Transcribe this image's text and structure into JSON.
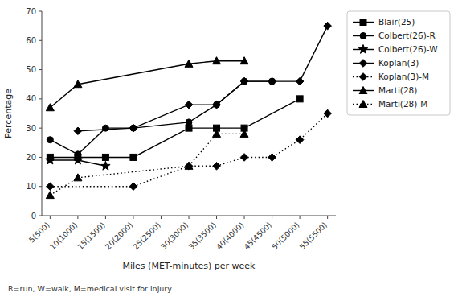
{
  "chart_data": {
    "type": "line",
    "x_label": "Miles (MET-minutes) per week",
    "y_label": "Percentage",
    "annotations": [
      "R=run, W=walk, M=medical visit for injury"
    ],
    "categories": [
      "5(500)",
      "10(1000)",
      "15(1500)",
      "20(2000)",
      "25(2500)",
      "30(3000)",
      "35(3500)",
      "40(4000)",
      "45(4500)",
      "50(5000)",
      "55(5500)"
    ],
    "series": [
      {
        "name": "Blair(25)",
        "color": "#000000",
        "marker": "square",
        "line_style": "solid",
        "x": [
          "5(500)",
          "10(1000)",
          "15(1500)",
          "20(2000)",
          "30(3000)",
          "35(3500)",
          "40(4000)",
          "50(5000)"
        ],
        "values": [
          20,
          20,
          20,
          20,
          30,
          30,
          30,
          40
        ]
      },
      {
        "name": "Colbert(26)-R",
        "color": "#000000",
        "marker": "circle",
        "line_style": "solid",
        "x": [
          "5(500)",
          "10(1000)",
          "15(1500)",
          "20(2000)",
          "30(3000)",
          "35(3500)",
          "40(4000)",
          "45(4500)"
        ],
        "values": [
          26,
          21,
          30,
          30,
          32,
          38,
          46,
          46
        ]
      },
      {
        "name": "Colbert(26)-W",
        "color": "#000000",
        "marker": "star",
        "line_style": "solid",
        "x": [
          "5(500)",
          "10(1000)",
          "15(1500)"
        ],
        "values": [
          19,
          19,
          17
        ]
      },
      {
        "name": "Koplan(3)",
        "color": "#000000",
        "marker": "diamond",
        "line_style": "solid",
        "x": [
          "10(1000)",
          "20(2000)",
          "30(3000)",
          "35(3500)",
          "40(4000)",
          "45(4500)",
          "50(5000)",
          "55(5500)"
        ],
        "values": [
          29,
          30,
          38,
          38,
          46,
          46,
          46,
          65
        ]
      },
      {
        "name": "Koplan(3)-M",
        "color": "#000000",
        "marker": "diamond",
        "line_style": "dotted",
        "x": [
          "5(500)",
          "20(2000)",
          "30(3000)",
          "35(3500)",
          "40(4000)",
          "45(4500)",
          "50(5000)",
          "55(5500)"
        ],
        "values": [
          10,
          10,
          17,
          17,
          20,
          20,
          26,
          35
        ]
      },
      {
        "name": "Marti(28)",
        "color": "#000000",
        "marker": "triangle",
        "line_style": "solid",
        "x": [
          "5(500)",
          "10(1000)",
          "30(3000)",
          "35(3500)",
          "40(4000)"
        ],
        "values": [
          37,
          45,
          52,
          53,
          53
        ]
      },
      {
        "name": "Marti(28)-M",
        "color": "#000000",
        "marker": "triangle",
        "line_style": "dotted",
        "x": [
          "5(500)",
          "10(1000)",
          "30(3000)",
          "35(3500)",
          "40(4000)"
        ],
        "values": [
          7,
          13,
          17,
          28,
          28
        ]
      }
    ],
    "ylim": [
      0,
      70
    ],
    "yticks": [
      0,
      10,
      20,
      30,
      40,
      50,
      60,
      70
    ],
    "grid": false,
    "legend": "right"
  }
}
